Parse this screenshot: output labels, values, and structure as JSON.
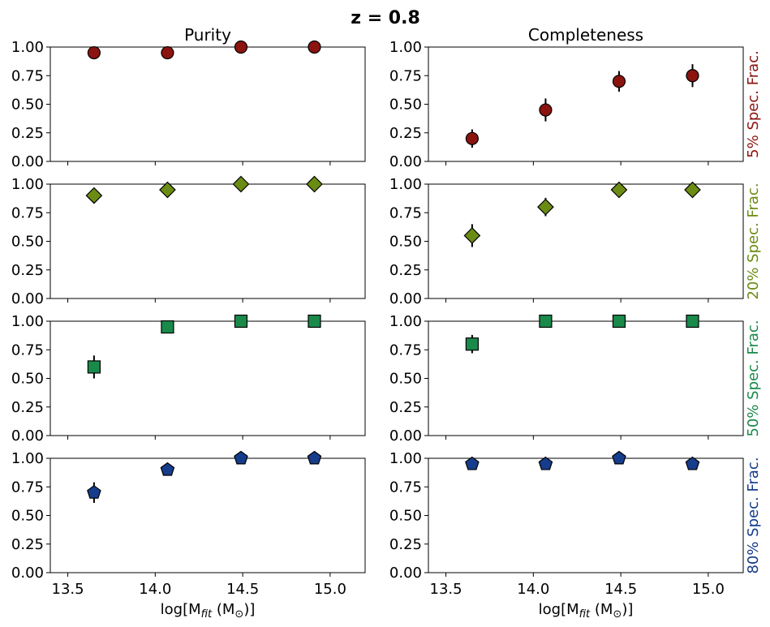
{
  "chart_data": {
    "type": "scatter",
    "suptitle": "z = 0.8",
    "column_titles": [
      "Purity",
      "Completeness"
    ],
    "xlabel_prefix": "log[M",
    "xlabel_sub": "fit",
    "xlabel_mid": " (M",
    "xlabel_sun": "⊙",
    "xlabel_suffix": ")]",
    "xlim": [
      13.4,
      15.2
    ],
    "ylim": [
      0.0,
      1.0
    ],
    "xticks": [
      13.5,
      14.0,
      14.5,
      15.0
    ],
    "xtick_labels": [
      "13.5",
      "14.0",
      "14.5",
      "15.0"
    ],
    "yticks": [
      0.0,
      0.25,
      0.5,
      0.75,
      1.0
    ],
    "ytick_labels": [
      "0.00",
      "0.25",
      "0.50",
      "0.75",
      "1.00"
    ],
    "x": [
      13.65,
      14.07,
      14.49,
      14.91
    ],
    "rows": [
      {
        "label": "5% Spec. Frac.",
        "color": "#8b1410",
        "marker": "circle",
        "purity": [
          0.95,
          0.95,
          1.0,
          1.0
        ],
        "purity_err": [
          0.03,
          0.03,
          0.0,
          0.0
        ],
        "completeness": [
          0.2,
          0.45,
          0.7,
          0.75
        ],
        "completeness_err": [
          0.08,
          0.1,
          0.09,
          0.1
        ]
      },
      {
        "label": "20% Spec. Frac.",
        "color": "#6b8c12",
        "marker": "diamond",
        "purity": [
          0.9,
          0.95,
          1.0,
          1.0
        ],
        "purity_err": [
          0.03,
          0.02,
          0.0,
          0.0
        ],
        "completeness": [
          0.55,
          0.8,
          0.95,
          0.95
        ],
        "completeness_err": [
          0.1,
          0.08,
          0.02,
          0.02
        ]
      },
      {
        "label": "50% Spec. Frac.",
        "color": "#1a8a4a",
        "marker": "square",
        "purity": [
          0.6,
          0.95,
          1.0,
          1.0
        ],
        "purity_err": [
          0.1,
          0.02,
          0.0,
          0.0
        ],
        "completeness": [
          0.8,
          1.0,
          1.0,
          1.0
        ],
        "completeness_err": [
          0.08,
          0.0,
          0.0,
          0.0
        ]
      },
      {
        "label": "80% Spec. Frac.",
        "color": "#163c8c",
        "marker": "pentagon",
        "purity": [
          0.7,
          0.9,
          1.0,
          1.0
        ],
        "purity_err": [
          0.09,
          0.05,
          0.0,
          0.0
        ],
        "completeness": [
          0.95,
          0.95,
          1.0,
          0.95
        ],
        "completeness_err": [
          0.02,
          0.02,
          0.0,
          0.02
        ]
      }
    ]
  }
}
